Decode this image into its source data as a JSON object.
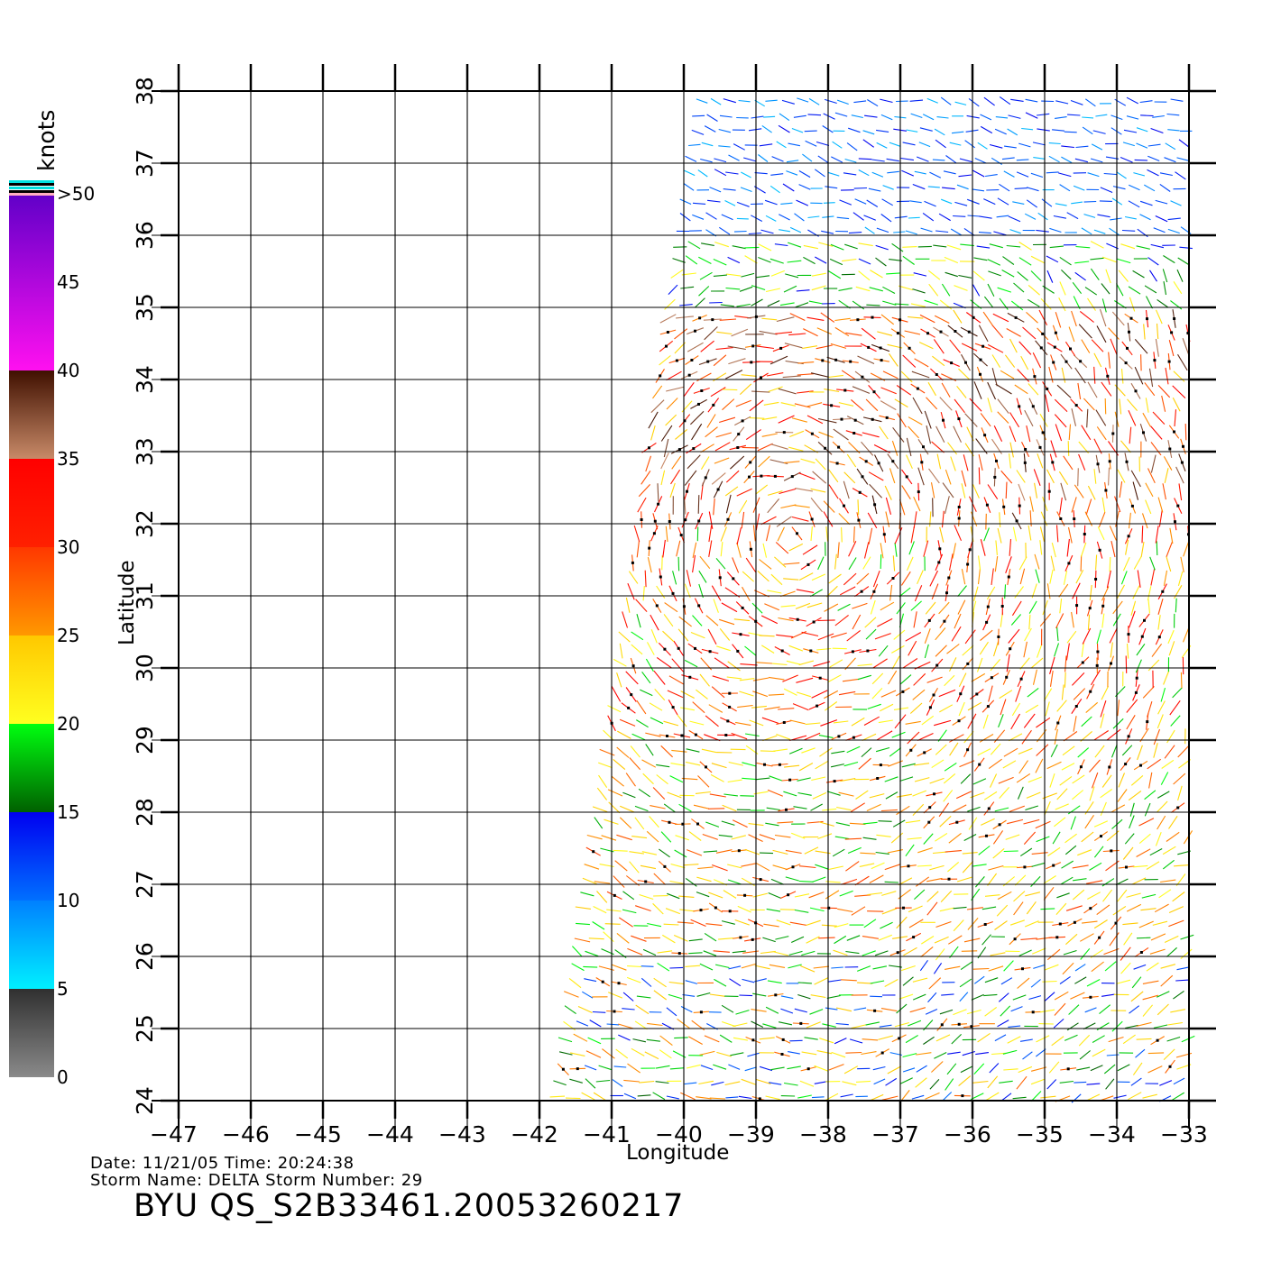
{
  "info": {
    "date_line": "Date: 11/21/05   Time: 20:24:38",
    "storm_line": "Storm Name: DELTA   Storm Number: 29",
    "file_name": "BYU QS_S2B33461.20053260217"
  },
  "colorbar": {
    "unit": "knots",
    "levels": [
      "0",
      "5",
      "10",
      "15",
      "20",
      "25",
      "30",
      "35",
      "40",
      "45",
      ">50"
    ],
    "colors": {
      "0-5": [
        "#8a8a8a",
        "#303030"
      ],
      "5-10": [
        "#00e8ff",
        "#0090ff"
      ],
      "10-15": [
        "#0070ff",
        "#0000ff"
      ],
      "15-20": [
        "#006000",
        "#00ff00"
      ],
      "20-25": [
        "#ffff00",
        "#ffc000"
      ],
      "25-30": [
        "#ff9000",
        "#ff3000"
      ],
      "30-35": [
        "#ff1000",
        "#ff0000"
      ],
      "35-40": [
        "#c08060",
        "#400000"
      ],
      "40-50": [
        "#ff00ff",
        "#8000c0"
      ],
      "50+": [
        "#6000d0",
        "#5000d0"
      ]
    }
  },
  "chart_data": {
    "type": "map-wind-vectors",
    "xlabel": "Longitude",
    "ylabel": "Latitude",
    "x_ticks": [
      "-47",
      "-46",
      "-45",
      "-44",
      "-43",
      "-42",
      "-41",
      "-40",
      "-39",
      "-38",
      "-37",
      "-36",
      "-35",
      "-34",
      "-33"
    ],
    "y_ticks": [
      "24",
      "25",
      "26",
      "27",
      "28",
      "29",
      "30",
      "31",
      "32",
      "33",
      "34",
      "35",
      "36",
      "37",
      "38"
    ],
    "xlim": [
      -47,
      -33
    ],
    "ylim": [
      24,
      38
    ],
    "grid": true,
    "swath_lon_at_south_lat": [
      -41.8,
      -33
    ],
    "swath_lon_at_north_lat": [
      -39.8,
      -33
    ],
    "wind_bands_knots_by_lat": [
      {
        "lat_min": 36,
        "lat_max": 38,
        "speed": [
          7,
          15
        ]
      },
      {
        "lat_min": 35,
        "lat_max": 36,
        "speed": [
          14,
          22
        ]
      },
      {
        "lat_min": 32,
        "lat_max": 35,
        "speed": [
          22,
          40
        ]
      },
      {
        "lat_min": 29,
        "lat_max": 32,
        "speed": [
          18,
          35
        ]
      },
      {
        "lat_min": 26,
        "lat_max": 29,
        "speed": [
          16,
          30
        ]
      },
      {
        "lat_min": 24,
        "lat_max": 26,
        "speed": [
          10,
          28
        ]
      }
    ],
    "cell_marker": "rain-flag-dot"
  }
}
